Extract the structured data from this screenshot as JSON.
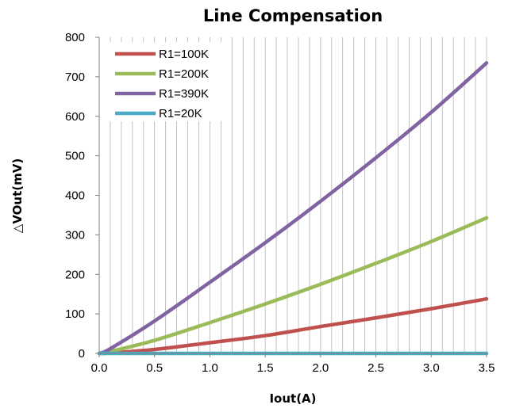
{
  "chart_data": {
    "type": "line",
    "title": "Line Compensation",
    "xlabel": "Iout(A)",
    "ylabel": "△VOut(mV)",
    "xlim": [
      0,
      3.5
    ],
    "ylim": [
      0,
      800
    ],
    "x_ticks": [
      "0.0",
      "0.5",
      "1.0",
      "1.5",
      "2.0",
      "2.5",
      "3.0",
      "3.5"
    ],
    "y_ticks": [
      "0",
      "100",
      "200",
      "300",
      "400",
      "500",
      "600",
      "700",
      "800"
    ],
    "grid": "vertical",
    "legend_position": "top-left",
    "x": [
      0,
      0.1,
      0.5,
      1.0,
      1.5,
      2.0,
      2.5,
      3.0,
      3.5
    ],
    "series": [
      {
        "name": "R1=100K",
        "color": "#c0504d",
        "values": [
          0,
          1,
          10,
          27,
          45,
          68,
          90,
          113,
          138
        ]
      },
      {
        "name": "R1=200K",
        "color": "#9bbb59",
        "values": [
          0,
          5,
          33,
          78,
          125,
          175,
          228,
          283,
          343
        ]
      },
      {
        "name": "R1=390K",
        "color": "#8064a2",
        "values": [
          0,
          12,
          82,
          180,
          280,
          385,
          495,
          610,
          735
        ]
      },
      {
        "name": "R1=20K",
        "color": "#4bacc6",
        "values": [
          0,
          0,
          0,
          0,
          0,
          0,
          0,
          0,
          0
        ]
      }
    ]
  }
}
